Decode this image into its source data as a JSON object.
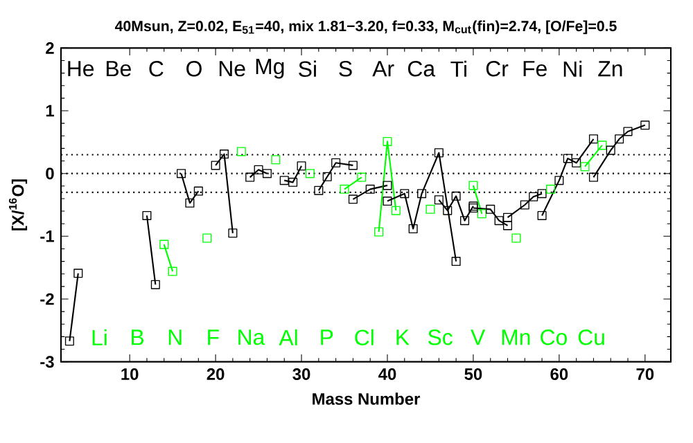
{
  "chart_data": {
    "type": "line",
    "title": "40Msun, Z=0.02, E$_{51}$=40, mix 1.81−3.20, f=0.33, M$_{cut}$(fin)=2.74, [O/Fe]=0.5",
    "xlabel": "Mass Number",
    "ylabel": "[X/$^{16}$O]",
    "xlim": [
      2,
      73
    ],
    "xticks": [
      10,
      20,
      30,
      40,
      50,
      60,
      70
    ],
    "ylim": [
      -3,
      2
    ],
    "yticks": [
      -3,
      -2,
      -1,
      0,
      1,
      2
    ],
    "grid": false,
    "marker": "square",
    "line_style": "solid",
    "tick_labels": "xy",
    "annotations": [
      "He",
      "Li",
      "Be",
      "B",
      "C",
      "N",
      "O",
      "F",
      "Ne",
      "Na",
      "Mg",
      "Al",
      "Si",
      "P",
      "S",
      "Cl",
      "Ar",
      "K",
      "Ca",
      "Sc",
      "Ti",
      "V",
      "Cr",
      "Mn",
      "Fe",
      "Co",
      "Ni",
      "Cu",
      "Zn"
    ],
    "ref_lines": [
      {
        "axis": "y",
        "value": 0.3,
        "line_style": "dotted",
        "color": "#000000"
      },
      {
        "axis": "y",
        "value": 0,
        "line_style": "dotted",
        "color": "#000000"
      },
      {
        "axis": "y",
        "value": -0.3,
        "line_style": "dotted",
        "color": "#000000"
      }
    ],
    "series": [
      {
        "color": "#000000",
        "x": [
          3,
          4
        ],
        "values": [
          -2.67,
          -1.59
        ]
      },
      {
        "color": "#000000",
        "x": [
          12,
          13
        ],
        "values": [
          -0.67,
          -1.77
        ]
      },
      {
        "color": "#00ff00",
        "x": [
          14,
          15
        ],
        "values": [
          -1.13,
          -1.56
        ]
      },
      {
        "color": "#000000",
        "x": [
          16,
          17,
          18
        ],
        "values": [
          0.0,
          -0.47,
          -0.28
        ]
      },
      {
        "color": "#00ff00",
        "x": [
          19
        ],
        "values": [
          -1.03
        ]
      },
      {
        "color": "#000000",
        "x": [
          20,
          21,
          22
        ],
        "values": [
          0.13,
          0.31,
          -0.95
        ]
      },
      {
        "color": "#00ff00",
        "x": [
          23
        ],
        "values": [
          0.35
        ]
      },
      {
        "color": "#000000",
        "x": [
          24,
          25,
          26
        ],
        "values": [
          -0.06,
          0.06,
          0.0
        ]
      },
      {
        "color": "#00ff00",
        "x": [
          27
        ],
        "values": [
          0.22
        ]
      },
      {
        "color": "#000000",
        "x": [
          28,
          29,
          30
        ],
        "values": [
          -0.11,
          -0.14,
          0.12
        ]
      },
      {
        "color": "#00ff00",
        "x": [
          31
        ],
        "values": [
          0.0
        ]
      },
      {
        "color": "#000000",
        "x": [
          32,
          33,
          34,
          36
        ],
        "values": [
          -0.27,
          -0.05,
          0.17,
          0.13
        ]
      },
      {
        "color": "#00ff00",
        "x": [
          35,
          37
        ],
        "values": [
          -0.25,
          -0.06
        ]
      },
      {
        "color": "#000000",
        "x": [
          36,
          38,
          40
        ],
        "values": [
          -0.41,
          -0.25,
          -0.19
        ]
      },
      {
        "color": "#00ff00",
        "x": [
          39,
          40,
          41
        ],
        "values": [
          -0.93,
          0.51,
          -0.59
        ]
      },
      {
        "color": "#000000",
        "x": [
          40,
          42,
          43,
          44,
          46,
          48
        ],
        "values": [
          -0.44,
          -0.32,
          -0.88,
          -0.32,
          0.33,
          -1.4
        ]
      },
      {
        "color": "#00ff00",
        "x": [
          45
        ],
        "values": [
          -0.57
        ]
      },
      {
        "color": "#000000",
        "x": [
          46,
          47,
          48,
          49,
          50
        ],
        "values": [
          -0.42,
          -0.59,
          -0.36,
          -0.75,
          -0.52
        ]
      },
      {
        "color": "#00ff00",
        "x": [
          50,
          51
        ],
        "values": [
          -0.19,
          -0.64
        ]
      },
      {
        "color": "#000000",
        "x": [
          50,
          52,
          53,
          54
        ],
        "values": [
          -0.55,
          -0.57,
          -0.75,
          -0.83
        ]
      },
      {
        "color": "#00ff00",
        "x": [
          55
        ],
        "values": [
          -1.03
        ]
      },
      {
        "color": "#000000",
        "x": [
          54,
          56,
          57,
          58
        ],
        "values": [
          -0.7,
          -0.5,
          -0.37,
          -0.32
        ]
      },
      {
        "color": "#00ff00",
        "x": [
          59
        ],
        "values": [
          -0.25
        ]
      },
      {
        "color": "#000000",
        "x": [
          58,
          60,
          61,
          62,
          64
        ],
        "values": [
          -0.67,
          -0.11,
          0.24,
          0.17,
          0.55
        ]
      },
      {
        "color": "#00ff00",
        "x": [
          63,
          65
        ],
        "values": [
          0.11,
          0.45
        ]
      },
      {
        "color": "#000000",
        "x": [
          64,
          66,
          67,
          68,
          70
        ],
        "values": [
          -0.06,
          0.37,
          0.55,
          0.67,
          0.77
        ]
      }
    ]
  }
}
